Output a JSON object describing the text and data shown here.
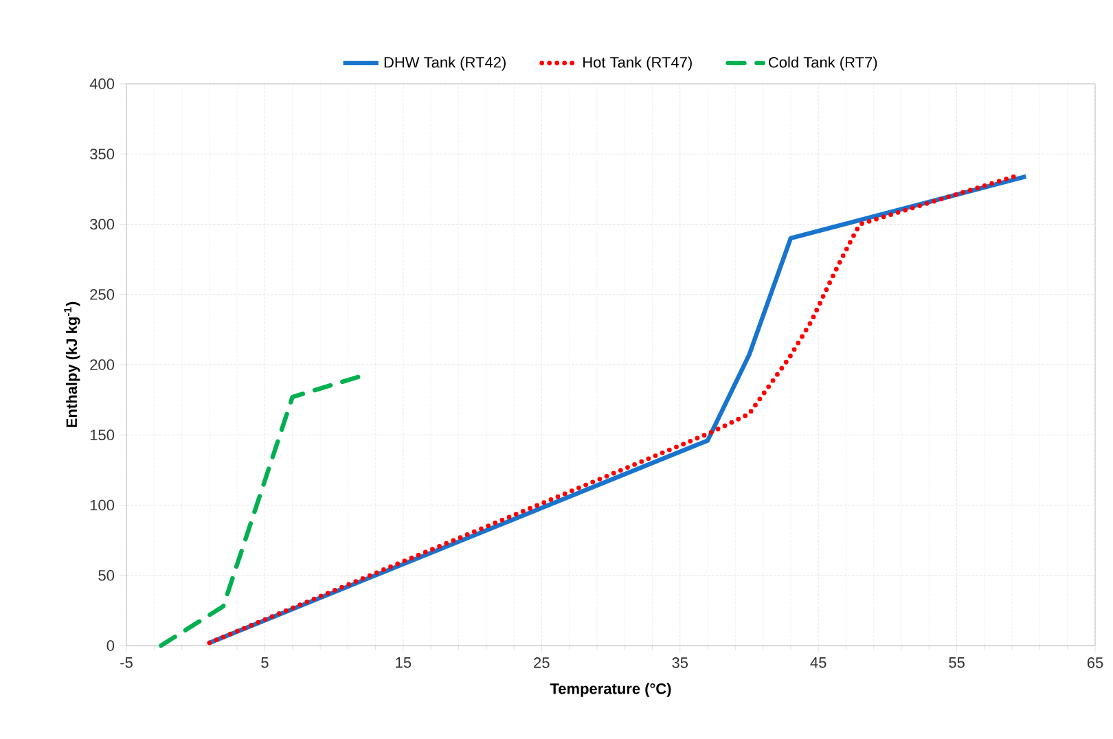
{
  "chart_data": {
    "type": "line",
    "xlabel": "Temperature  (°C)",
    "ylabel": "Enthalpy  (kJ  kg$^{-1}$)",
    "xlim": [
      -5,
      65
    ],
    "xticks": [
      -5,
      5,
      15,
      25,
      35,
      45,
      55,
      65
    ],
    "ylim": [
      0,
      400
    ],
    "yticks": [
      0,
      50,
      100,
      150,
      200,
      250,
      300,
      350,
      400
    ],
    "grid": true,
    "legend": "top",
    "marker": "none",
    "series": [
      {
        "name": "DHW Tank (RT42)",
        "color": "#1874cd",
        "line_style": "solid",
        "x": [
          1,
          37,
          40,
          43,
          60
        ],
        "values": [
          2,
          146,
          207,
          290,
          334
        ]
      },
      {
        "name": "Hot Tank (RT47)",
        "color": "#ff0000",
        "line_style": "dotted",
        "x": [
          1,
          37.3,
          40,
          42.9,
          44.5,
          45.7,
          46.6,
          47.5,
          48,
          59.5
        ],
        "values": [
          2,
          152,
          165,
          205,
          231,
          256,
          274,
          291,
          300,
          335
        ]
      },
      {
        "name": "Cold Tank (RT7)",
        "color": "#00b050",
        "line_style": "dashed",
        "x": [
          -2.5,
          2,
          7,
          12
        ],
        "values": [
          0,
          28,
          177,
          192
        ]
      }
    ]
  }
}
